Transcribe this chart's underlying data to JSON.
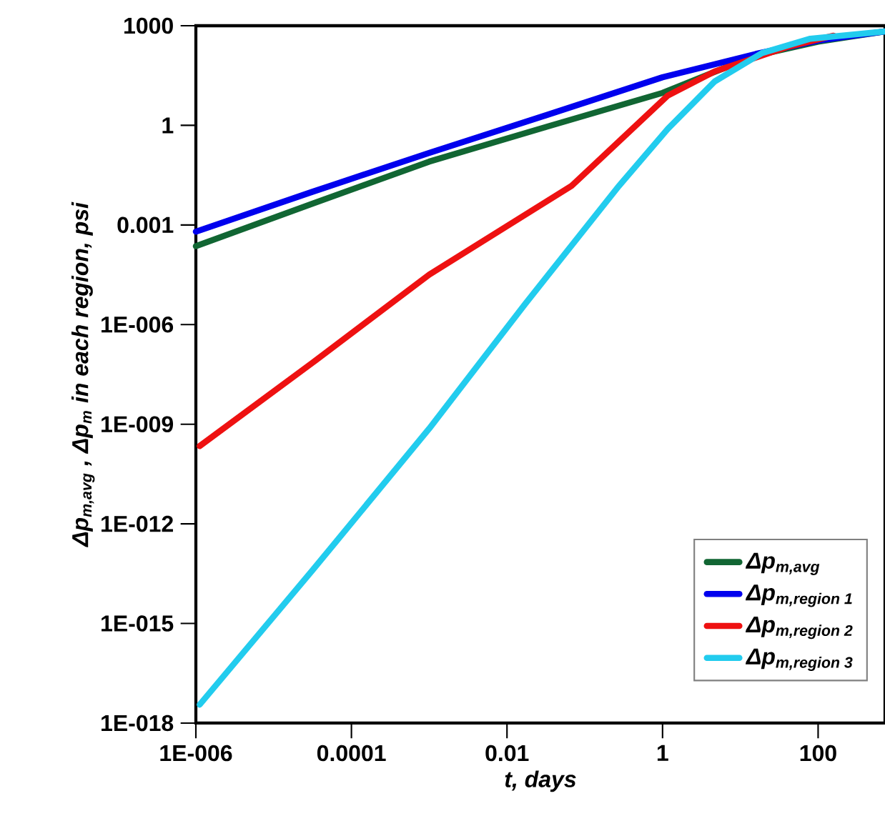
{
  "chart_data": {
    "type": "line",
    "xlabel": "t, days",
    "ylabel": "Δp$_{m,avg}$ , Δp$_{m}$ in each region, psi",
    "log": "xy",
    "legend": "bottom right",
    "marker": "none",
    "line_style": "solid",
    "xlim": [
      1e-06,
      724
    ],
    "ylim": [
      1e-18,
      1000
    ],
    "xticks": [
      {
        "value": 1e-06,
        "label": "1E-006"
      },
      0.0001,
      0.01,
      1,
      100
    ],
    "yticks": [
      {
        "value": 1e-18,
        "label": "1E-018"
      },
      {
        "value": 1e-15,
        "label": "1E-015"
      },
      {
        "value": 1e-12,
        "label": "1E-012"
      },
      {
        "value": 1e-09,
        "label": "1E-009"
      },
      {
        "value": 1e-06,
        "label": "1E-006"
      },
      0.001,
      1,
      1000
    ],
    "series": [
      {
        "name": "Δp$_{m,avg}$",
        "color": "#116633",
        "x": [
          1e-06,
          3.16e-05,
          0.001,
          0.0316,
          1,
          3.98,
          15.8,
          100,
          724
        ],
        "values": [
          0.00023,
          0.0044,
          0.081,
          0.89,
          9.5,
          35,
          126,
          331,
          676
        ]
      },
      {
        "name": "Δp$_{m,region 1}$",
        "color": "#0000ee",
        "x": [
          1e-06,
          3.16e-05,
          0.001,
          0.0316,
          1,
          3.98,
          15.8,
          100,
          724
        ],
        "values": [
          0.00063,
          0.01,
          0.148,
          2.0,
          28,
          63,
          141,
          355,
          676
        ]
      },
      {
        "name": "Δp$_{m,region 2}$",
        "color": "#ee1111",
        "x": [
          1.12e-06,
          3.16e-05,
          0.001,
          0.0676,
          1.17,
          4.68,
          38.9,
          158
        ],
        "values": [
          2.2e-10,
          7.1e-08,
          3.2e-05,
          0.015,
          7.9,
          42,
          224,
          501
        ]
      },
      {
        "name": "Δp$_{m,region 3}$",
        "color": "#22ccee",
        "x": [
          1.12e-06,
          3.16e-05,
          0.001,
          0.017,
          0.275,
          1.17,
          4.68,
          19.1,
          79.4,
          724
        ],
        "values": [
          3.6e-18,
          4e-14,
          7.4e-10,
          4.1e-06,
          0.015,
          0.79,
          21,
          151,
          407,
          676
        ]
      }
    ]
  }
}
